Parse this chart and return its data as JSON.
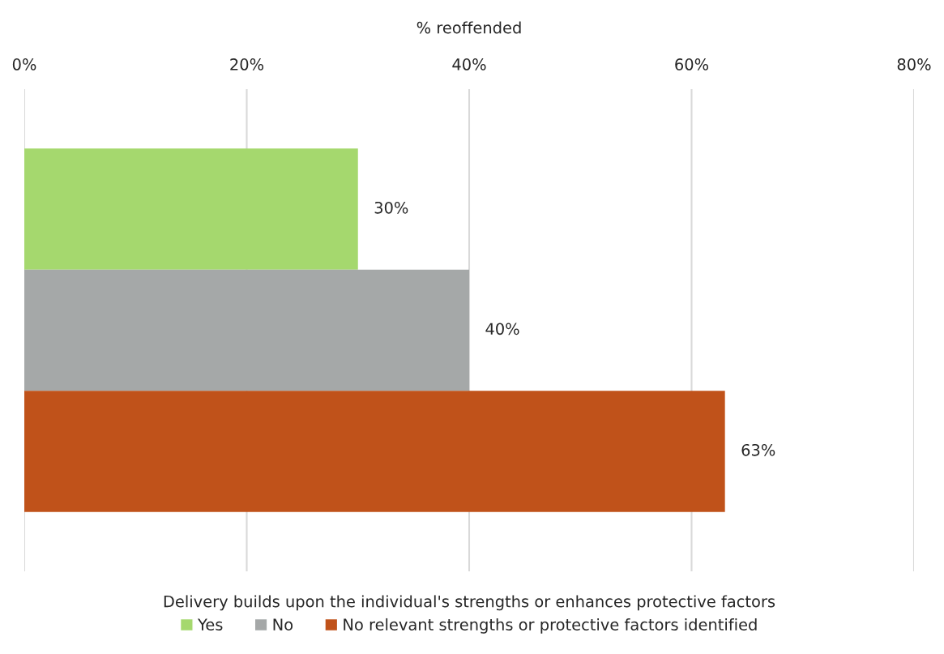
{
  "chart_data": {
    "type": "bar",
    "orientation": "horizontal",
    "xlabel": "% reoffended",
    "legend_title": "Delivery builds upon the individual's strengths or enhances protective factors",
    "categories": [
      null
    ],
    "series": [
      {
        "name": "Yes",
        "color": "#a5d86e",
        "values": [
          30
        ]
      },
      {
        "name": "No",
        "color": "#a5a8a8",
        "values": [
          40
        ]
      },
      {
        "name": "No relevant strengths or protective factors identified",
        "color": "#c0521a",
        "values": [
          63
        ]
      }
    ],
    "value_labels": [
      "30%",
      "40%",
      "63%"
    ],
    "xlim": [
      0,
      80
    ],
    "xticks": [
      {
        "value": 0,
        "label": "0%"
      },
      {
        "value": 20,
        "label": "20%"
      },
      {
        "value": 40,
        "label": "40%"
      },
      {
        "value": 60,
        "label": "60%"
      },
      {
        "value": 80,
        "label": "80%"
      }
    ],
    "grid": "x",
    "legend": "bottom"
  }
}
